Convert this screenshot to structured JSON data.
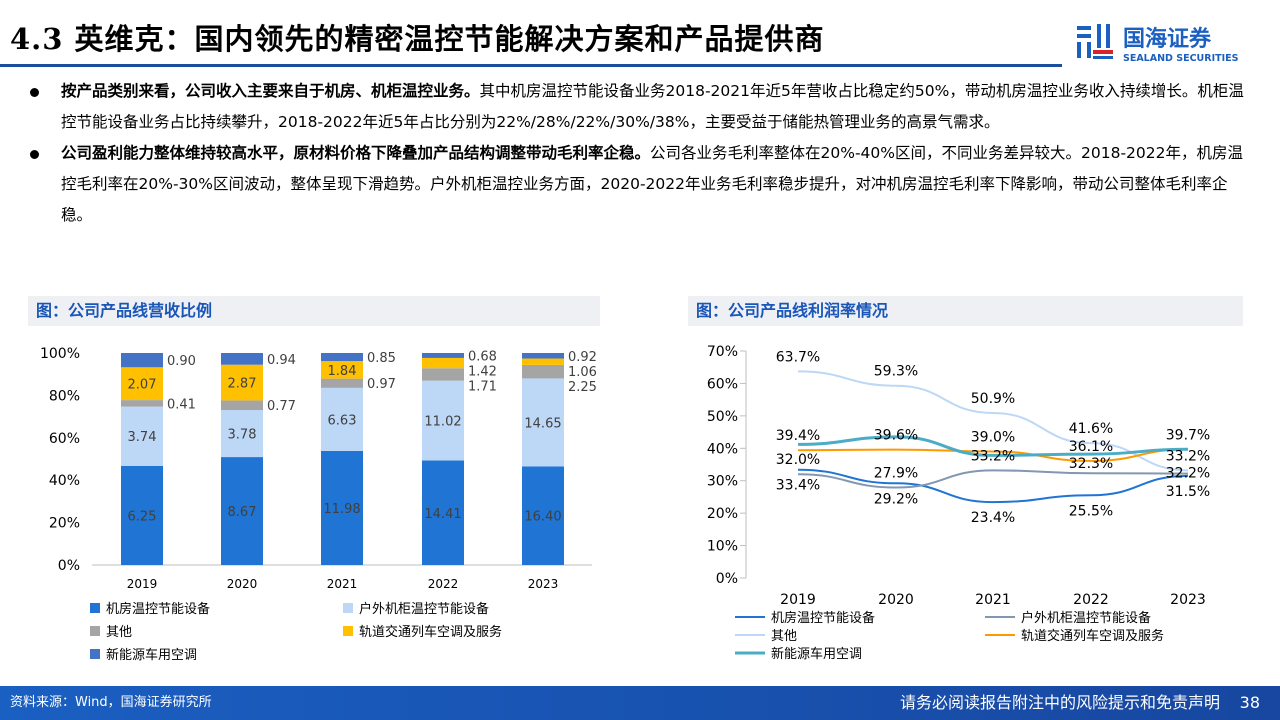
{
  "header": {
    "title": "4.3 英维克：国内领先的精密温控节能解决方案和产品提供商",
    "logo_cn": "国海证券",
    "logo_en": "SEALAND SECURITIES"
  },
  "bullets": [
    {
      "bold": "按产品类别来看，公司收入主要来自于机房、机柜温控业务。",
      "text": "其中机房温控节能设备业务2018-2021年近5年营收占比稳定约50%，带动机房温控业务收入持续增长。机柜温控节能设备业务占比持续攀升，2018-2022年近5年占比分别为22%/28%/22%/30%/38%，主要受益于储能热管理业务的高景气需求。"
    },
    {
      "bold": "公司盈利能力整体维持较高水平，原材料价格下降叠加产品结构调整带动毛利率企稳。",
      "text": "公司各业务毛利率整体在20%-40%区间，不同业务差异较大。2018-2022年，机房温控毛利率在20%-30%区间波动，整体呈现下滑趋势。户外机柜温控业务方面，2020-2022年业务毛利率稳步提升，对冲机房温控毛利率下降影响，带动公司整体毛利率企稳。"
    }
  ],
  "chart_titles": {
    "left": "图：公司产品线营收比例",
    "right": "图：公司产品线利润率情况"
  },
  "chart_data": [
    {
      "type": "bar",
      "stacked": "percent",
      "categories": [
        "2019",
        "2020",
        "2021",
        "2022",
        "2023"
      ],
      "yticks": [
        "0%",
        "20%",
        "40%",
        "60%",
        "80%",
        "100%"
      ],
      "ylim": [
        0,
        100
      ],
      "series": [
        {
          "name": "机房温控节能设备",
          "color": "#1f74d4",
          "values": [
            6.25,
            8.67,
            11.98,
            14.41,
            16.4
          ],
          "labels": [
            "6.25",
            "8.67",
            "11.98",
            "14.41",
            "16.40"
          ]
        },
        {
          "name": "户外机柜温控节能设备",
          "color": "#bdd7f6",
          "values": [
            3.74,
            3.78,
            6.63,
            11.02,
            14.65
          ],
          "labels": [
            "3.74",
            "3.78",
            "6.63",
            "11.02",
            "14.65"
          ]
        },
        {
          "name": "其他",
          "color": "#a5a5a5",
          "values": [
            0.41,
            0.77,
            0.97,
            1.71,
            2.25
          ],
          "labels": [
            "0.41",
            "0.77",
            "0.97",
            "1.71",
            "2.25"
          ]
        },
        {
          "name": "轨道交通列车空调及服务",
          "color": "#ffc000",
          "values": [
            2.07,
            2.87,
            1.84,
            1.42,
            1.06
          ],
          "labels": [
            "2.07",
            "2.87",
            "1.84",
            "1.42",
            "1.06"
          ]
        },
        {
          "name": "新能源车用空调",
          "color": "#4472c4",
          "values": [
            0.9,
            0.94,
            0.85,
            0.68,
            0.92
          ],
          "labels": [
            "0.90",
            "0.94",
            "0.85",
            "0.68",
            "0.92"
          ]
        }
      ],
      "legend": "bottom"
    },
    {
      "type": "line",
      "categories": [
        "2019",
        "2020",
        "2021",
        "2022",
        "2023"
      ],
      "yticks": [
        "0%",
        "10%",
        "20%",
        "30%",
        "40%",
        "50%",
        "60%",
        "70%"
      ],
      "ylim": [
        0,
        70
      ],
      "series": [
        {
          "name": "机房温控节能设备",
          "color": "#1f74d4",
          "values": [
            33.4,
            29.2,
            23.4,
            25.5,
            31.5
          ],
          "labels": [
            "33.4%",
            "29.2%",
            "23.4%",
            "25.5%",
            "31.5%"
          ],
          "pos": "below"
        },
        {
          "name": "户外机柜温控节能设备",
          "color": "#8497b0",
          "values": [
            32.0,
            27.9,
            33.2,
            32.3,
            32.2
          ],
          "labels": [
            "32.0%",
            "27.9%",
            "33.2%",
            "32.3%",
            "32.2%"
          ],
          "pos": "above"
        },
        {
          "name": "其他",
          "color": "#bdd7f6",
          "values": [
            63.7,
            59.3,
            50.9,
            41.6,
            33.2
          ],
          "labels": [
            "63.7%",
            "59.3%",
            "50.9%",
            "41.6%",
            "33.2%"
          ],
          "pos": "above"
        },
        {
          "name": "轨道交通列车空调及服务",
          "color": "#ff9900",
          "values": [
            39.4,
            39.6,
            39.0,
            36.1,
            39.7
          ],
          "labels": [
            "39.4%",
            "39.6%",
            "39.0%",
            "36.1%",
            "39.7%"
          ],
          "pos": "above"
        },
        {
          "name": "新能源车用空调",
          "color": "#4bacc6",
          "values": [
            41.2,
            43.5,
            37.8,
            38.2,
            39.7
          ],
          "labels": [],
          "pos": "above"
        }
      ],
      "legend": "bottom"
    }
  ],
  "footer": {
    "source": "资料来源：Wind，国海证券研究所",
    "disclaimer": "请务必阅读报告附注中的风险提示和免责声明",
    "page": "38"
  }
}
